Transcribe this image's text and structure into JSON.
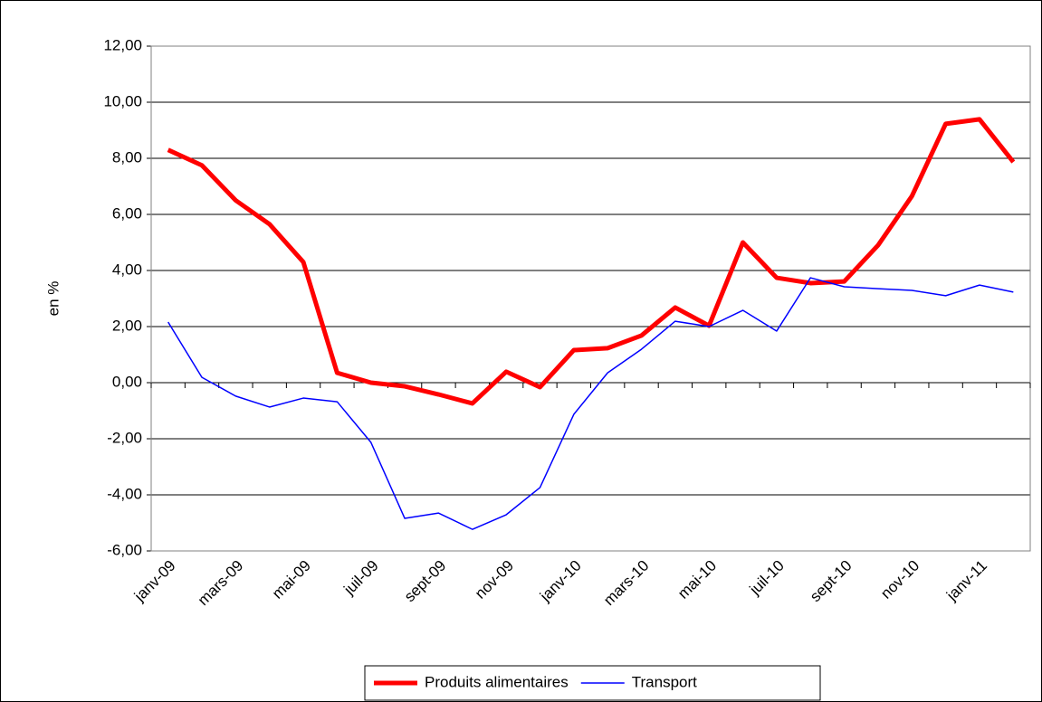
{
  "chart_data": {
    "type": "line",
    "y_label": "en %",
    "categories": [
      "janv-09",
      null,
      "mars-09",
      null,
      "mai-09",
      null,
      "juil-09",
      null,
      "sept-09",
      null,
      "nov-09",
      null,
      "janv-10",
      null,
      "mars-10",
      null,
      "mai-10",
      null,
      "juil-10",
      null,
      "sept-10",
      null,
      "nov-10",
      null,
      "janv-11",
      null
    ],
    "series": [
      {
        "name": "Produits alimentaires",
        "color": "#ff0000",
        "values": [
          8.3,
          7.75,
          6.5,
          5.65,
          4.3,
          0.35,
          0.0,
          -0.13,
          -0.42,
          -0.74,
          0.39,
          -0.16,
          1.16,
          1.23,
          1.68,
          2.68,
          2.03,
          5.0,
          3.74,
          3.55,
          3.61,
          4.9,
          6.65,
          9.23,
          9.39,
          7.87
        ]
      },
      {
        "name": "Transport",
        "color": "#0000ff",
        "values": [
          2.16,
          0.19,
          -0.48,
          -0.87,
          -0.55,
          -0.68,
          -2.13,
          -4.84,
          -4.65,
          -5.23,
          -4.71,
          -3.74,
          -1.13,
          0.35,
          1.19,
          2.19,
          2.0,
          2.58,
          1.84,
          3.74,
          3.42,
          3.35,
          3.29,
          3.1,
          3.48,
          3.23
        ]
      }
    ],
    "ylim": [
      -6,
      12
    ],
    "yticks": [
      {
        "value": -6,
        "label": "-6,00"
      },
      {
        "value": -4,
        "label": "-4,00"
      },
      {
        "value": -2,
        "label": "-2,00"
      },
      {
        "value": 0,
        "label": "0,00"
      },
      {
        "value": 2,
        "label": "2,00"
      },
      {
        "value": 4,
        "label": "4,00"
      },
      {
        "value": 6,
        "label": "6,00"
      },
      {
        "value": 8,
        "label": "8,00"
      },
      {
        "value": 10,
        "label": "10,00"
      },
      {
        "value": 12,
        "label": "12,00"
      }
    ],
    "grid": true,
    "legend": "bottom"
  }
}
